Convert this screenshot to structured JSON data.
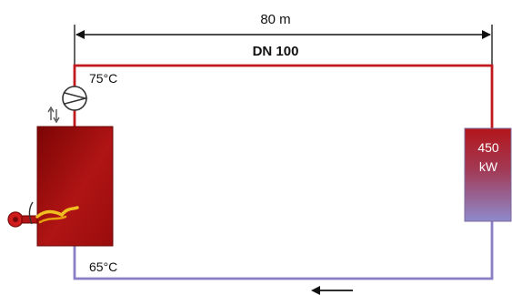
{
  "diagram": {
    "length_label": "80 m",
    "pipe_label": "DN 100",
    "supply_temp": "75°C",
    "return_temp": "65°C",
    "consumer": {
      "power_value": "450",
      "power_unit": "kW"
    }
  },
  "colors": {
    "supply_line": "#c0191e",
    "return_line": "#8a7fc4",
    "boiler_dark": "#8f0a0a",
    "boiler_light": "#c01818",
    "consumer_top": "#b01a1a",
    "consumer_bottom": "#8d86c8",
    "burner_flame": "#f0c020",
    "dimension_line": "#111111"
  }
}
